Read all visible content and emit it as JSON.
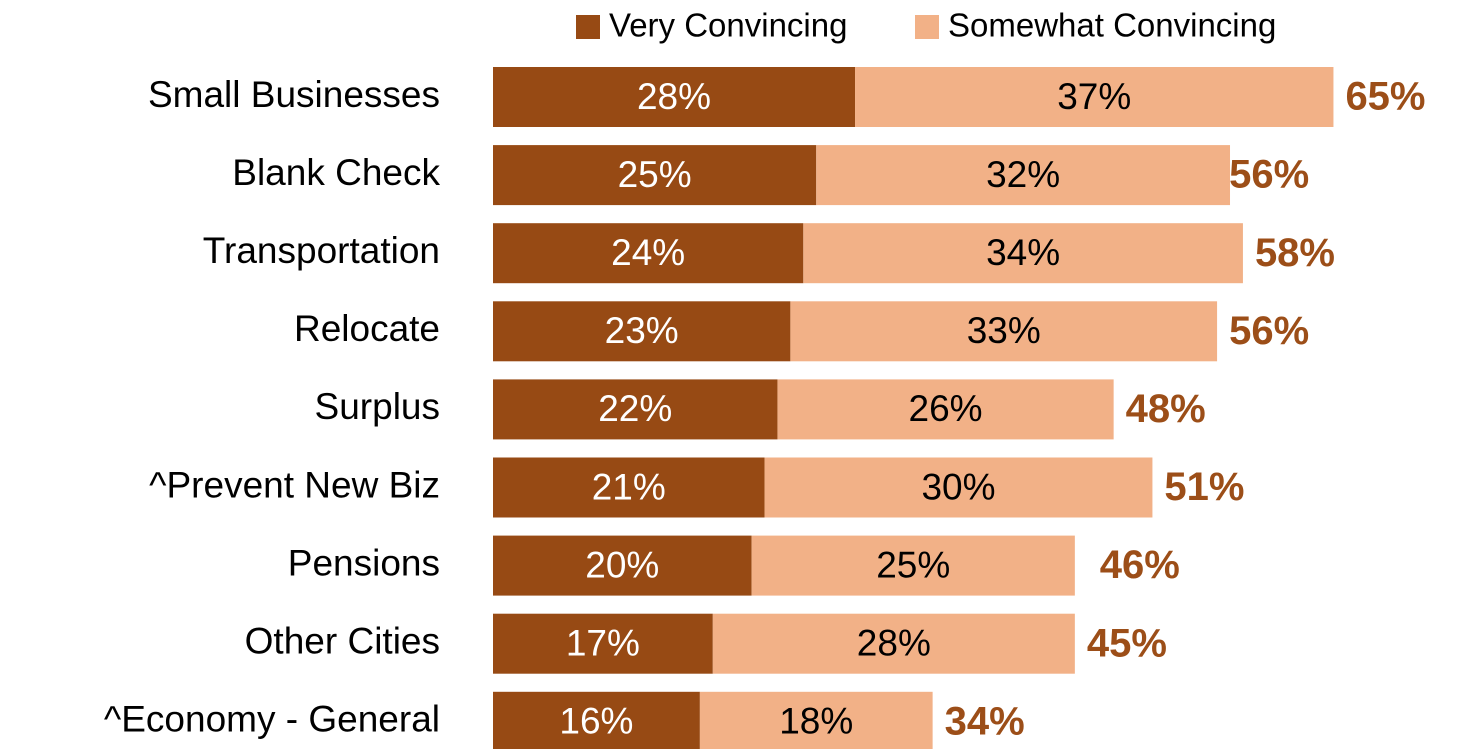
{
  "chart_data": {
    "type": "bar",
    "orientation": "horizontal",
    "stacked": true,
    "legend": "top",
    "categories": [
      "Small Businesses",
      "Blank Check",
      "Transportation",
      "Relocate",
      "Surplus",
      "^Prevent New Biz",
      "Pensions",
      "Other Cities",
      "^Economy - General"
    ],
    "series": [
      {
        "name": "Very Convincing",
        "color": "#974a14",
        "label_color": "#ffffff",
        "values": [
          28,
          25,
          24,
          23,
          22,
          21,
          20,
          17,
          16
        ],
        "value_labels": [
          "28%",
          "25%",
          "24%",
          "23%",
          "22%",
          "21%",
          "20%",
          "17%",
          "16%"
        ]
      },
      {
        "name": "Somewhat Convincing",
        "color": "#f2b187",
        "label_color": "#000000",
        "values": [
          37,
          32,
          34,
          33,
          26,
          30,
          25,
          28,
          18
        ],
        "value_labels": [
          "37%",
          "32%",
          "34%",
          "33%",
          "26%",
          "30%",
          "25%",
          "28%",
          "18%"
        ]
      }
    ],
    "totals": {
      "color": "#9c4e18",
      "values": [
        65,
        56,
        58,
        56,
        48,
        51,
        46,
        45,
        34
      ],
      "value_labels": [
        "65%",
        "56%",
        "58%",
        "56%",
        "48%",
        "51%",
        "46%",
        "45%",
        "34%"
      ]
    }
  }
}
